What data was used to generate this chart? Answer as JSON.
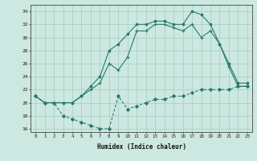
{
  "xlabel": "Humidex (Indice chaleur)",
  "bg_color": "#cce8e0",
  "grid_color": "#9fcfbf",
  "line_color": "#2a7a68",
  "xlim": [
    -0.5,
    23.5
  ],
  "ylim": [
    15.5,
    35.0
  ],
  "xticks": [
    0,
    1,
    2,
    3,
    4,
    5,
    6,
    7,
    8,
    9,
    10,
    11,
    12,
    13,
    14,
    15,
    16,
    17,
    18,
    19,
    20,
    21,
    22,
    23
  ],
  "yticks": [
    16,
    18,
    20,
    22,
    24,
    26,
    28,
    30,
    32,
    34
  ],
  "line1_x": [
    0,
    1,
    2,
    3,
    4,
    5,
    6,
    7,
    8,
    9,
    10,
    11,
    12,
    13,
    14,
    15,
    16,
    17,
    18,
    19,
    20,
    21,
    22,
    23
  ],
  "line1_y": [
    21,
    20,
    20,
    20,
    20,
    21,
    22.5,
    24,
    28,
    29,
    30.5,
    32,
    32,
    32.5,
    32.5,
    32,
    32,
    34,
    33.5,
    32,
    29,
    26,
    23,
    23
  ],
  "line2_x": [
    0,
    1,
    2,
    3,
    4,
    5,
    6,
    7,
    8,
    9,
    10,
    11,
    12,
    13,
    14,
    15,
    16,
    17,
    18,
    19,
    20,
    21,
    22,
    23
  ],
  "line2_y": [
    21,
    20,
    20,
    20,
    20,
    21,
    22,
    23,
    26,
    25,
    27,
    31,
    31,
    32,
    32,
    31.5,
    31,
    32,
    30,
    31,
    29,
    25.5,
    22.5,
    22.5
  ],
  "line3_x": [
    0,
    1,
    2,
    3,
    4,
    5,
    6,
    7,
    8,
    9,
    10,
    11,
    12,
    13,
    14,
    15,
    16,
    17,
    18,
    19,
    20,
    21,
    22,
    23
  ],
  "line3_y": [
    21,
    20,
    20,
    18,
    17.5,
    17,
    16.5,
    16,
    16,
    21,
    19,
    19.5,
    20,
    20.5,
    20.5,
    21,
    21,
    21.5,
    22,
    22,
    22,
    22,
    22.5,
    22.5
  ]
}
